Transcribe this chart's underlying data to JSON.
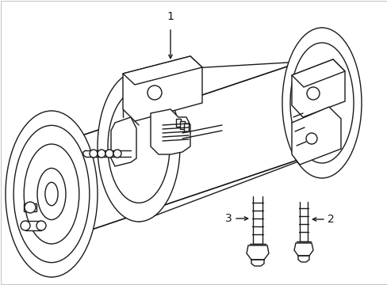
{
  "background_color": "#ffffff",
  "line_color": "#1a1a1a",
  "line_width": 1.0,
  "label_1": "1",
  "label_2": "2",
  "label_3": "3",
  "fig_width": 4.89,
  "fig_height": 3.6,
  "dpi": 100
}
